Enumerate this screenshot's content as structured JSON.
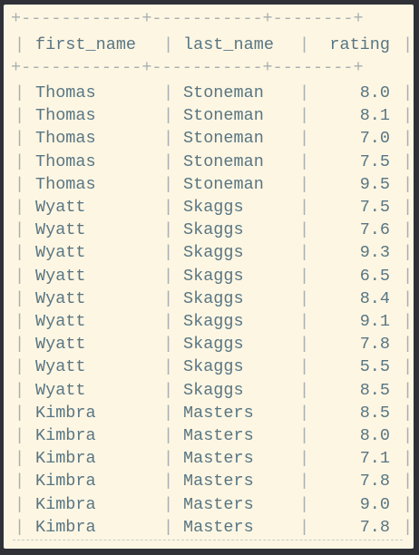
{
  "table": {
    "border_top": "+------------+-----------+--------+",
    "border_mid": "+------------+-----------+--------+",
    "columns": [
      "first_name",
      "last_name",
      "rating"
    ],
    "rows": [
      {
        "first_name": "Thomas",
        "last_name": "Stoneman",
        "rating": "8.0"
      },
      {
        "first_name": "Thomas",
        "last_name": "Stoneman",
        "rating": "8.1"
      },
      {
        "first_name": "Thomas",
        "last_name": "Stoneman",
        "rating": "7.0"
      },
      {
        "first_name": "Thomas",
        "last_name": "Stoneman",
        "rating": "7.5"
      },
      {
        "first_name": "Thomas",
        "last_name": "Stoneman",
        "rating": "9.5"
      },
      {
        "first_name": "Wyatt",
        "last_name": "Skaggs",
        "rating": "7.5"
      },
      {
        "first_name": "Wyatt",
        "last_name": "Skaggs",
        "rating": "7.6"
      },
      {
        "first_name": "Wyatt",
        "last_name": "Skaggs",
        "rating": "9.3"
      },
      {
        "first_name": "Wyatt",
        "last_name": "Skaggs",
        "rating": "6.5"
      },
      {
        "first_name": "Wyatt",
        "last_name": "Skaggs",
        "rating": "8.4"
      },
      {
        "first_name": "Wyatt",
        "last_name": "Skaggs",
        "rating": "9.1"
      },
      {
        "first_name": "Wyatt",
        "last_name": "Skaggs",
        "rating": "7.8"
      },
      {
        "first_name": "Wyatt",
        "last_name": "Skaggs",
        "rating": "5.5"
      },
      {
        "first_name": "Wyatt",
        "last_name": "Skaggs",
        "rating": "8.5"
      },
      {
        "first_name": "Kimbra",
        "last_name": "Masters",
        "rating": "8.5"
      },
      {
        "first_name": "Kimbra",
        "last_name": "Masters",
        "rating": "8.0"
      },
      {
        "first_name": "Kimbra",
        "last_name": "Masters",
        "rating": "7.1"
      },
      {
        "first_name": "Kimbra",
        "last_name": "Masters",
        "rating": "7.8"
      },
      {
        "first_name": "Kimbra",
        "last_name": "Masters",
        "rating": "9.0"
      },
      {
        "first_name": "Kimbra",
        "last_name": "Masters",
        "rating": "7.8"
      }
    ]
  },
  "colors": {
    "background": "#fdf6e3",
    "text": "#587683",
    "border": "#a8b0b0",
    "frame": "#2f3136"
  }
}
